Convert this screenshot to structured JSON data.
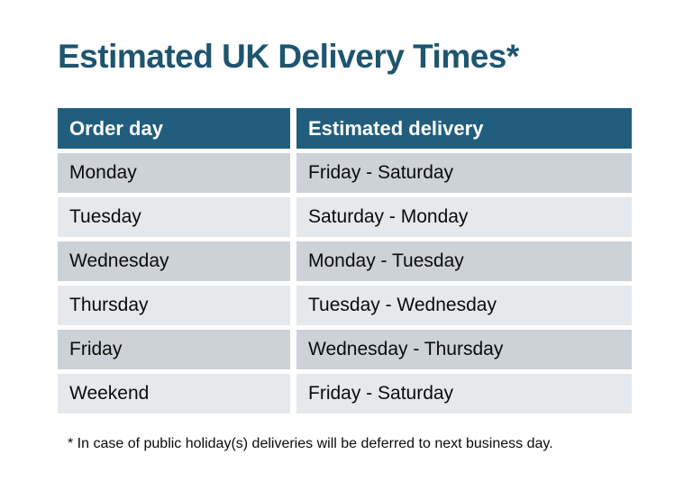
{
  "title": "Estimated UK Delivery Times*",
  "table": {
    "headers": {
      "order_day": "Order day",
      "estimated_delivery": "Estimated delivery"
    },
    "rows": [
      {
        "order_day": "Monday",
        "estimated_delivery": "Friday - Saturday"
      },
      {
        "order_day": "Tuesday",
        "estimated_delivery": "Saturday - Monday"
      },
      {
        "order_day": "Wednesday",
        "estimated_delivery": "Monday - Tuesday"
      },
      {
        "order_day": "Thursday",
        "estimated_delivery": "Tuesday - Wednesday"
      },
      {
        "order_day": "Friday",
        "estimated_delivery": "Wednesday - Thursday"
      },
      {
        "order_day": "Weekend",
        "estimated_delivery": "Friday - Saturday"
      }
    ]
  },
  "footnote": "* In case of public holiday(s) deliveries will be deferred to next business day.",
  "colors": {
    "background": "#FFFFFF",
    "title_text": "#1E556F",
    "header_background": "#215E7D",
    "header_text": "#FFFFFF",
    "row_stripe_dark": "#CDD1D8",
    "row_stripe_light": "#E6E9EC",
    "body_text": "#0B0B0B"
  },
  "chart_data": {
    "type": "table",
    "title": "Estimated UK Delivery Times*",
    "columns": [
      "Order day",
      "Estimated delivery"
    ],
    "rows": [
      [
        "Monday",
        "Friday - Saturday"
      ],
      [
        "Tuesday",
        "Saturday - Monday"
      ],
      [
        "Wednesday",
        "Monday - Tuesday"
      ],
      [
        "Thursday",
        "Tuesday - Wednesday"
      ],
      [
        "Friday",
        "Wednesday - Thursday"
      ],
      [
        "Weekend",
        "Friday - Saturday"
      ]
    ],
    "footnote": "* In case of public holiday(s) deliveries will be deferred to next business day.",
    "layout_hints": {
      "striped_rows": true,
      "header_style": "solid-teal",
      "grid": "white-gaps-between-cells"
    }
  }
}
